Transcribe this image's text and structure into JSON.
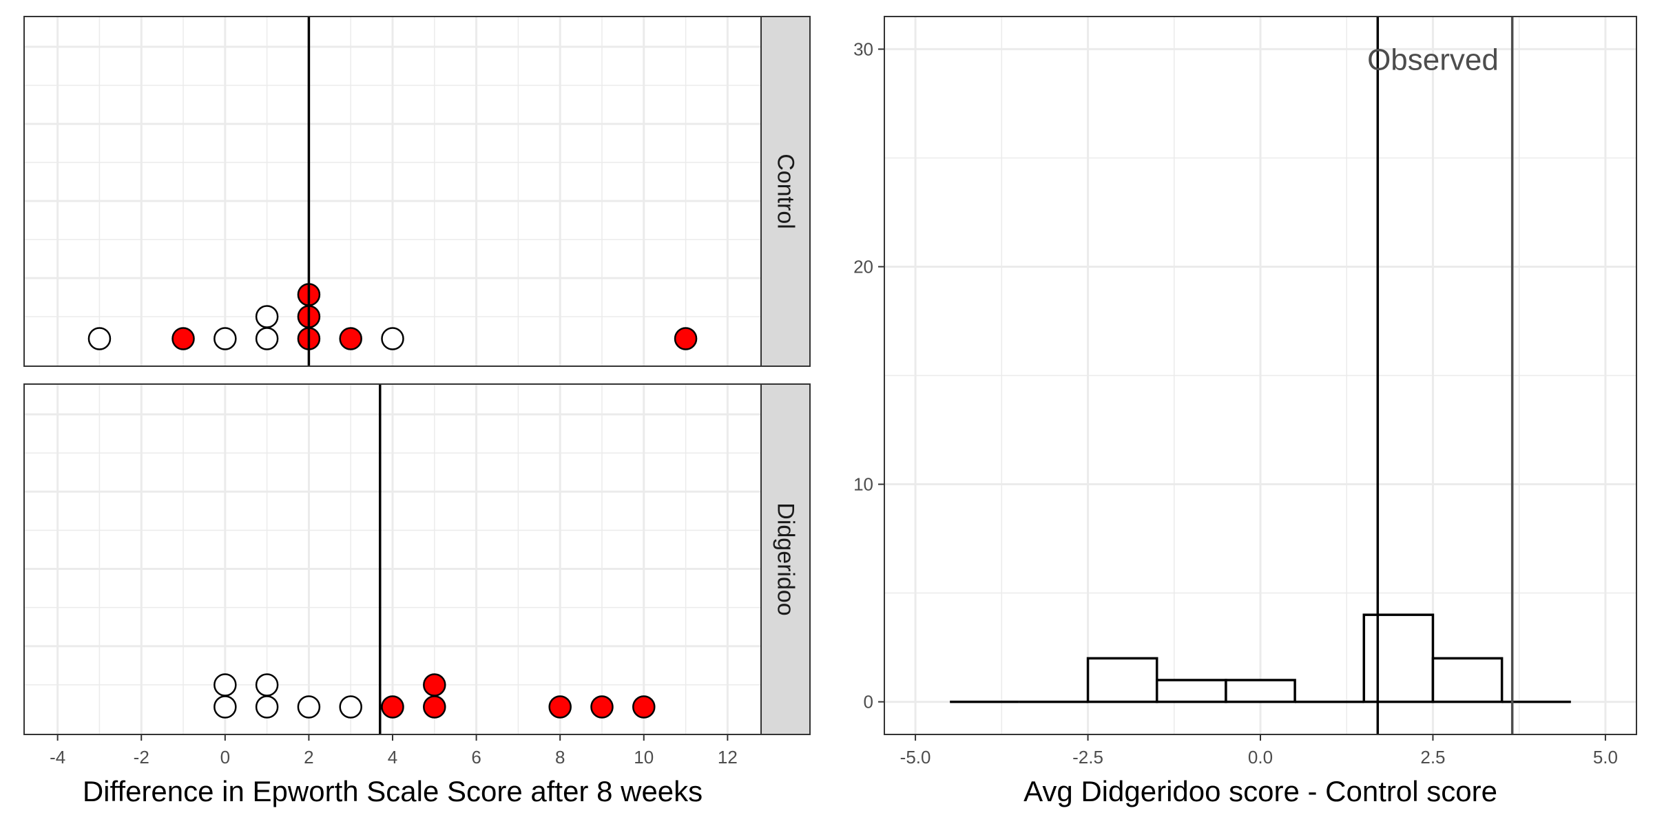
{
  "chart_data": [
    {
      "type": "scatter",
      "subtype": "faceted-dotplot",
      "xlabel": "Difference in Epworth Scale Score after 8 weeks",
      "ylabel": "",
      "xlim": [
        -4.8,
        12.8
      ],
      "x_ticks": [
        -4,
        -2,
        0,
        2,
        4,
        6,
        8,
        10,
        12
      ],
      "x_tick_labels": [
        "-4",
        "-2",
        "0",
        "2",
        "4",
        "6",
        "8",
        "10",
        "12"
      ],
      "grid": true,
      "colors": {
        "highlighted": "#ff0000",
        "other": "#ffffff",
        "outline": "#000000",
        "strip": "#d9d9d9"
      },
      "facets": [
        {
          "label": "Control",
          "mean_line": 2,
          "points": [
            {
              "x": -3,
              "stack": 0,
              "red": false
            },
            {
              "x": -1,
              "stack": 0,
              "red": true
            },
            {
              "x": 0,
              "stack": 0,
              "red": false
            },
            {
              "x": 1,
              "stack": 0,
              "red": false
            },
            {
              "x": 1,
              "stack": 1,
              "red": false
            },
            {
              "x": 2,
              "stack": 0,
              "red": true
            },
            {
              "x": 2,
              "stack": 1,
              "red": true
            },
            {
              "x": 2,
              "stack": 2,
              "red": true
            },
            {
              "x": 3,
              "stack": 0,
              "red": true
            },
            {
              "x": 4,
              "stack": 0,
              "red": false
            },
            {
              "x": 11,
              "stack": 0,
              "red": true
            }
          ]
        },
        {
          "label": "Didgeridoo",
          "mean_line": 3.7,
          "points": [
            {
              "x": 0,
              "stack": 0,
              "red": false
            },
            {
              "x": 0,
              "stack": 1,
              "red": false
            },
            {
              "x": 1,
              "stack": 0,
              "red": false
            },
            {
              "x": 1,
              "stack": 1,
              "red": false
            },
            {
              "x": 2,
              "stack": 0,
              "red": false
            },
            {
              "x": 3,
              "stack": 0,
              "red": false
            },
            {
              "x": 4,
              "stack": 0,
              "red": true
            },
            {
              "x": 5,
              "stack": 0,
              "red": true
            },
            {
              "x": 5,
              "stack": 1,
              "red": true
            },
            {
              "x": 8,
              "stack": 0,
              "red": true
            },
            {
              "x": 9,
              "stack": 0,
              "red": true
            },
            {
              "x": 10,
              "stack": 0,
              "red": true
            }
          ]
        }
      ]
    },
    {
      "type": "histogram",
      "xlabel": "Avg Didgeridoo score - Control score",
      "ylabel": "",
      "xlim": [
        -5.45,
        5.45
      ],
      "ylim": [
        -1.5,
        31.5
      ],
      "x_ticks": [
        -5,
        -2.5,
        0,
        2.5,
        5
      ],
      "x_tick_labels": [
        "-5.0",
        "-2.5",
        "0.0",
        "2.5",
        "5.0"
      ],
      "y_ticks": [
        0,
        10,
        20,
        30
      ],
      "y_tick_labels": [
        "0",
        "10",
        "20",
        "30"
      ],
      "grid": true,
      "bins": [
        {
          "x0": -4.5,
          "x1": -3.5,
          "count": 0
        },
        {
          "x0": -3.5,
          "x1": -2.5,
          "count": 0
        },
        {
          "x0": -2.5,
          "x1": -1.5,
          "count": 2
        },
        {
          "x0": -1.5,
          "x1": -0.5,
          "count": 1
        },
        {
          "x0": -0.5,
          "x1": 0.5,
          "count": 1
        },
        {
          "x0": 0.5,
          "x1": 1.5,
          "count": 0
        },
        {
          "x0": 1.5,
          "x1": 2.5,
          "count": 4
        },
        {
          "x0": 2.5,
          "x1": 3.5,
          "count": 2
        },
        {
          "x0": 3.5,
          "x1": 4.5,
          "count": 0
        }
      ],
      "vlines": [
        {
          "x": 1.7,
          "color": "#000000"
        },
        {
          "x": 3.65,
          "color": "#4d4d4d"
        }
      ],
      "annotation": {
        "text": "Observed",
        "x": 2.5,
        "y": 29.5
      }
    }
  ]
}
